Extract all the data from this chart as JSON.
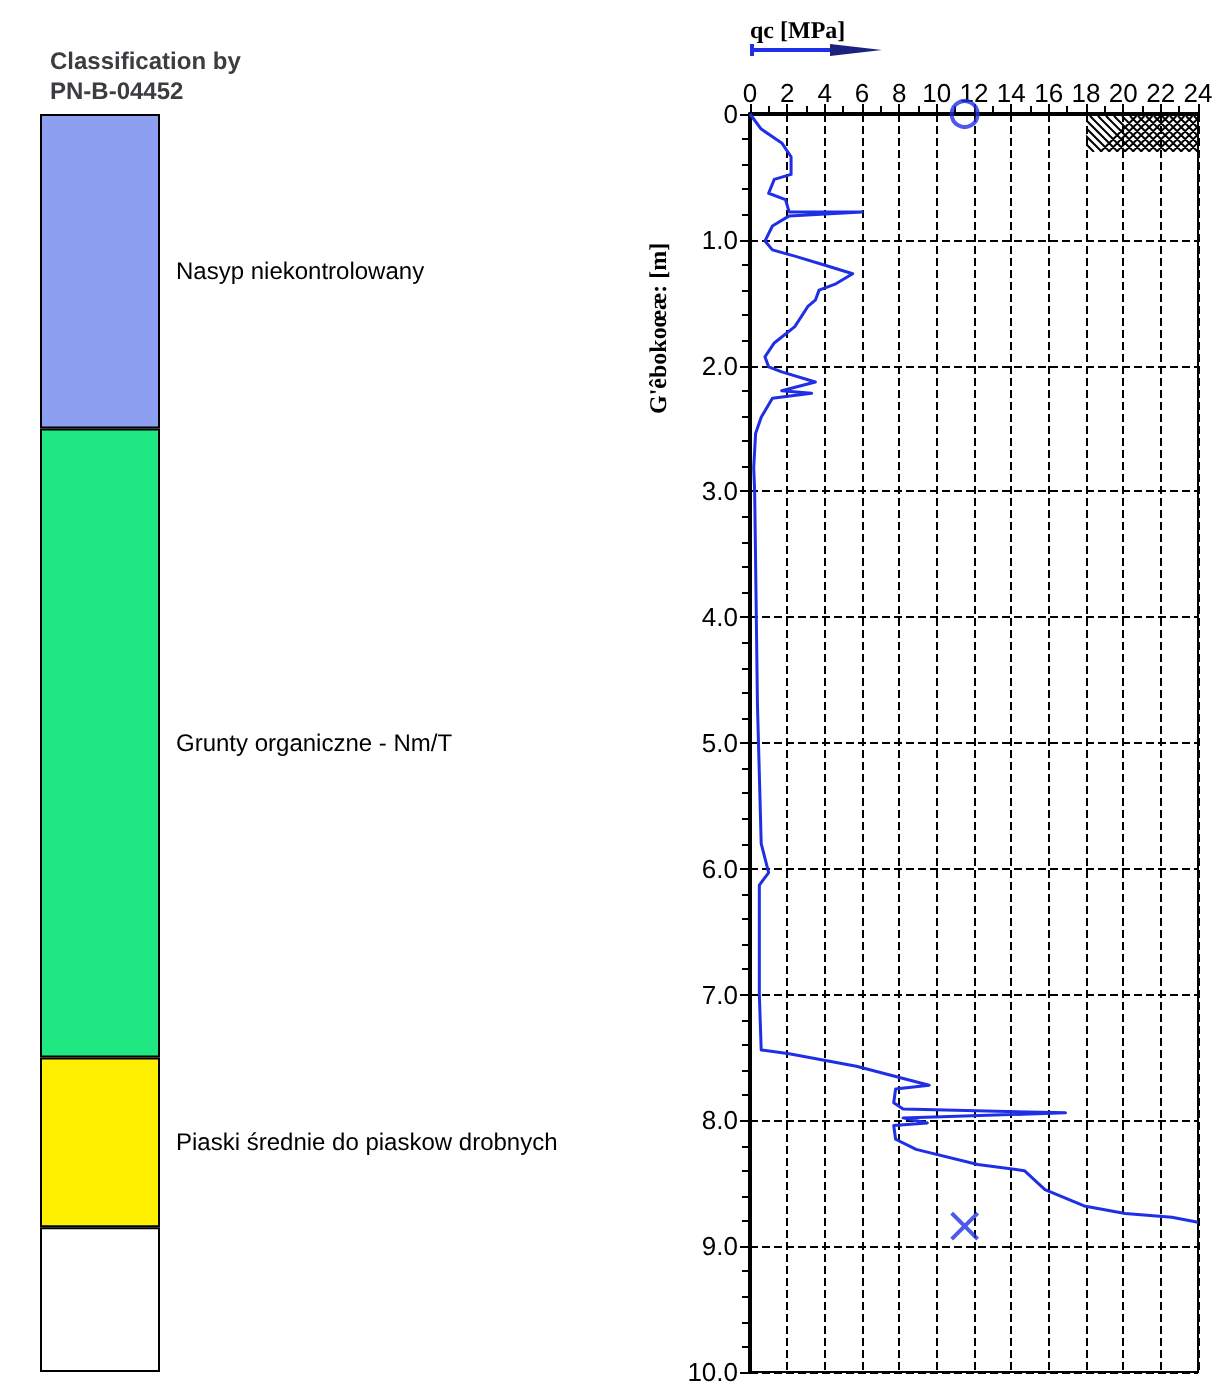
{
  "chart_data": [
    {
      "type": "bar",
      "title": "Classification by PN-B-04452",
      "stacked": true,
      "categories": [
        null
      ],
      "ylim": [
        10,
        0
      ],
      "series": [
        {
          "name": "Nasyp niekontrolowany",
          "color": "#8c9ff0",
          "values": [
            2.5
          ]
        },
        {
          "name": "Grunty organiczne - Nm/T",
          "color": "#1fe882",
          "values": [
            5.0
          ]
        },
        {
          "name": "Piaski średnie do piaskow drobnych",
          "color": "#fff000",
          "values": [
            1.35
          ]
        },
        {
          "color": "#ffffff",
          "values": [
            1.15
          ]
        }
      ]
    },
    {
      "type": "line",
      "xlabel": "qc [MPa]",
      "ylabel": "G'êbokoœæ: [m]",
      "xlim": [
        0,
        24
      ],
      "xticks": [
        0,
        2,
        4,
        6,
        8,
        10,
        12,
        14,
        16,
        18,
        20,
        22,
        24
      ],
      "ylim": [
        10,
        0
      ],
      "yticks": [
        0,
        {
          "value": 1,
          "label": "1.0"
        },
        {
          "value": 2,
          "label": "2.0"
        },
        {
          "value": 3,
          "label": "3.0"
        },
        {
          "value": 4,
          "label": "4.0"
        },
        {
          "value": 5,
          "label": "5.0"
        },
        {
          "value": 6,
          "label": "6.0"
        },
        {
          "value": 7,
          "label": "7.0"
        },
        {
          "value": 8,
          "label": "8.0"
        },
        {
          "value": 9,
          "label": "9.0"
        },
        {
          "value": 10,
          "label": "10.0"
        }
      ],
      "grid": true,
      "series": [
        {
          "type": "line",
          "color": "#1f2fe6",
          "marker": "none",
          "x": [
            0,
            0.6,
            1.7,
            2.2,
            2.2,
            1.3,
            1.0,
            1.9,
            2.1,
            6.0,
            2.1,
            1.2,
            0.8,
            1.2,
            2.4,
            4.2,
            5.5,
            4.6,
            3.7,
            3.5,
            3.1,
            2.4,
            1.3,
            0.8,
            1.0,
            1.7,
            3.5,
            1.7,
            3.3,
            1.2,
            0.6,
            0.3,
            0.2,
            0.25,
            0.4,
            0.6,
            1.0,
            0.5,
            0.5,
            0.5,
            0.6,
            2.1,
            5.7,
            9.6,
            7.8,
            7.7,
            8.2,
            16.9,
            8.2,
            9.5,
            7.7,
            7.8,
            8.9,
            12.2,
            14.7,
            15.8,
            17.9,
            20.1,
            22.6,
            24
          ],
          "values": [
            0,
            0.12,
            0.23,
            0.34,
            0.48,
            0.52,
            0.63,
            0.68,
            0.78,
            0.78,
            0.81,
            0.89,
            1.01,
            1.08,
            1.13,
            1.21,
            1.27,
            1.35,
            1.4,
            1.48,
            1.53,
            1.69,
            1.82,
            1.93,
            2.01,
            2.05,
            2.13,
            2.2,
            2.22,
            2.26,
            2.41,
            2.54,
            2.81,
            3.0,
            4.7,
            5.8,
            6.03,
            6.13,
            6.45,
            7.0,
            7.44,
            7.47,
            7.57,
            7.72,
            7.75,
            7.86,
            7.91,
            7.94,
            7.98,
            8.02,
            8.04,
            8.15,
            8.23,
            8.35,
            8.4,
            8.55,
            8.68,
            8.74,
            8.77,
            8.81
          ]
        },
        {
          "type": "scatter",
          "color": "#1f2fe6",
          "marker": "circle",
          "x": [
            11.5
          ],
          "values": [
            0
          ]
        },
        {
          "type": "scatter",
          "color": "#1f2fe6",
          "marker": "cross",
          "x": [
            11.5
          ],
          "values": [
            8.84
          ]
        }
      ]
    }
  ]
}
